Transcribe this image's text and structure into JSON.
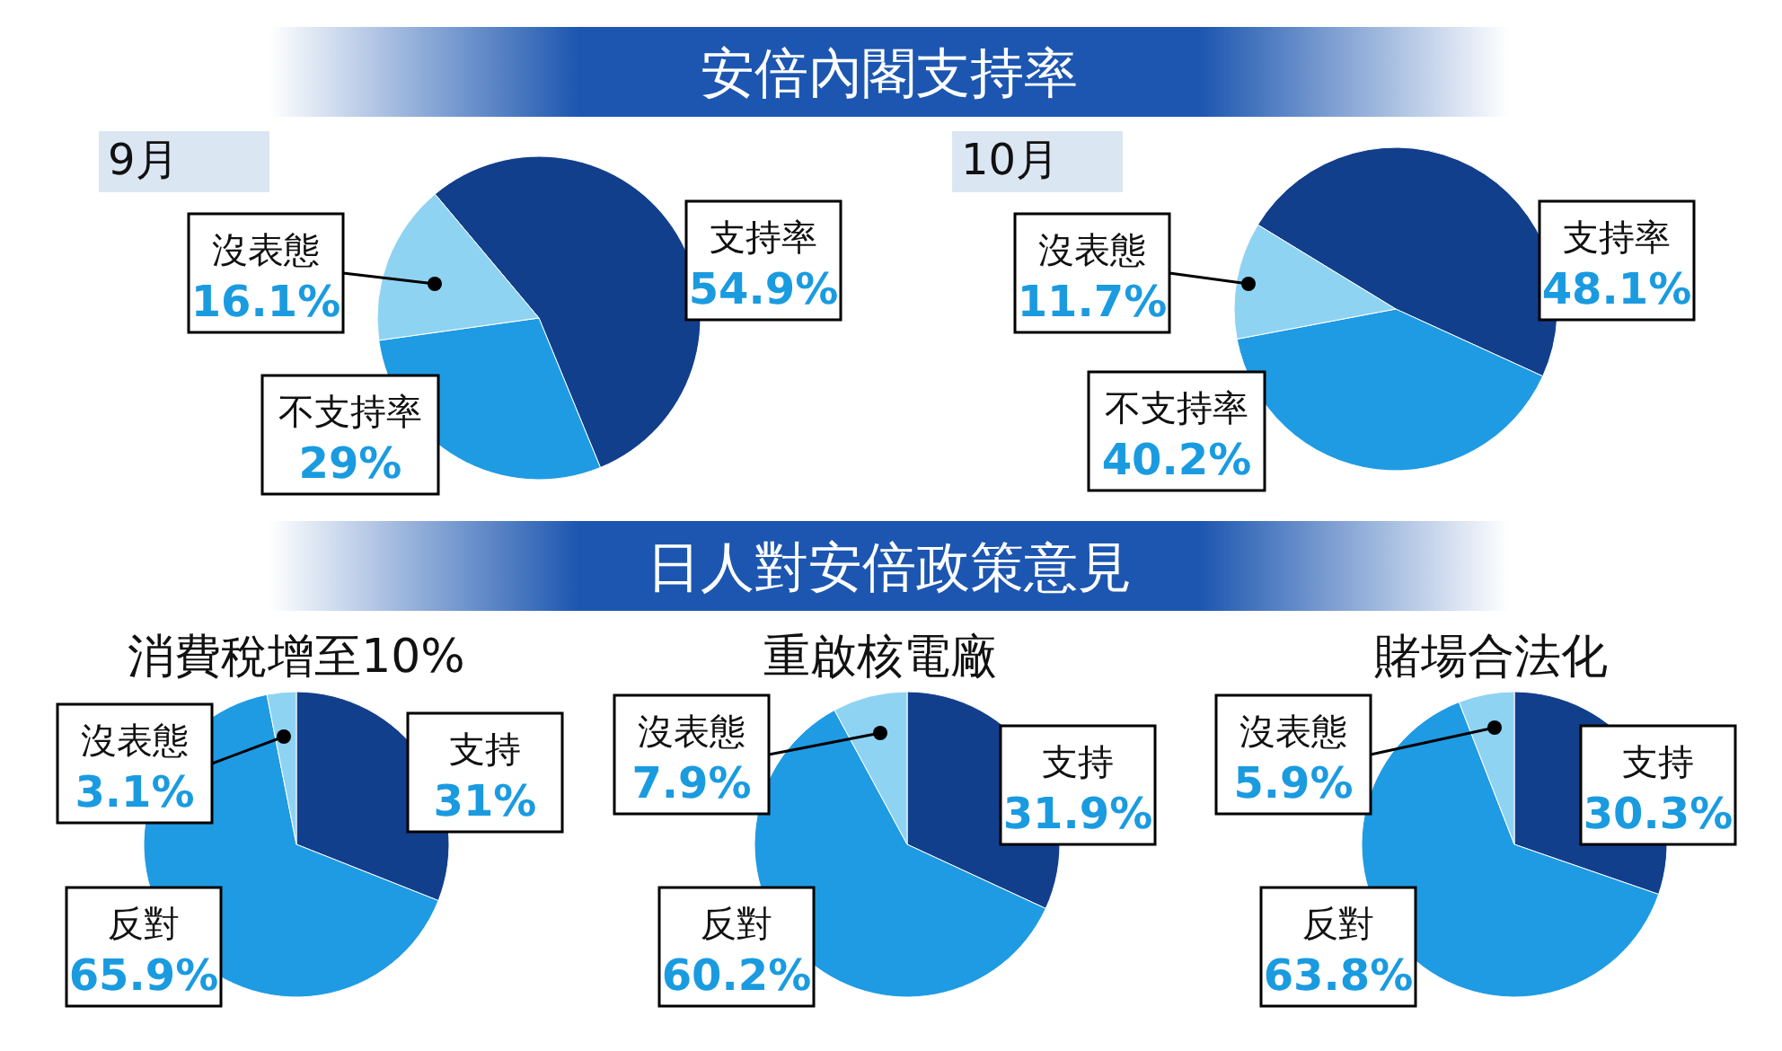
{
  "chart_data": [
    {
      "type": "other",
      "title": "安倍內閣支持率"
    },
    {
      "type": "pie",
      "title": "9月",
      "categories": [
        "支持率",
        "不支持率",
        "沒表態"
      ],
      "values": [
        54.9,
        29,
        16.1
      ],
      "value_labels": [
        "54.9%",
        "29%",
        "16.1%"
      ],
      "colors": [
        "#123f8c",
        "#1f9be3",
        "#8fd3f2"
      ]
    },
    {
      "type": "pie",
      "title": "10月",
      "categories": [
        "支持率",
        "不支持率",
        "沒表態"
      ],
      "values": [
        48.1,
        40.2,
        11.7
      ],
      "value_labels": [
        "48.1%",
        "40.2%",
        "11.7%"
      ],
      "colors": [
        "#123f8c",
        "#1f9be3",
        "#8fd3f2"
      ]
    },
    {
      "type": "other",
      "title": "日人對安倍政策意見"
    },
    {
      "type": "pie",
      "title": "消費稅增至10%",
      "categories": [
        "支持",
        "反對",
        "沒表態"
      ],
      "values": [
        31,
        65.9,
        3.1
      ],
      "value_labels": [
        "31%",
        "65.9%",
        "3.1%"
      ],
      "colors": [
        "#123f8c",
        "#1f9be3",
        "#8fd3f2"
      ]
    },
    {
      "type": "pie",
      "title": "重啟核電廠",
      "categories": [
        "支持",
        "反對",
        "沒表態"
      ],
      "values": [
        31.9,
        60.2,
        7.9
      ],
      "value_labels": [
        "31.9%",
        "60.2%",
        "7.9%"
      ],
      "colors": [
        "#123f8c",
        "#1f9be3",
        "#8fd3f2"
      ]
    },
    {
      "type": "pie",
      "title": "賭場合法化",
      "categories": [
        "支持",
        "反對",
        "沒表態"
      ],
      "values": [
        30.3,
        63.8,
        5.9
      ],
      "value_labels": [
        "30.3%",
        "63.8%",
        "5.9%"
      ],
      "colors": [
        "#123f8c",
        "#1f9be3",
        "#8fd3f2"
      ]
    }
  ]
}
